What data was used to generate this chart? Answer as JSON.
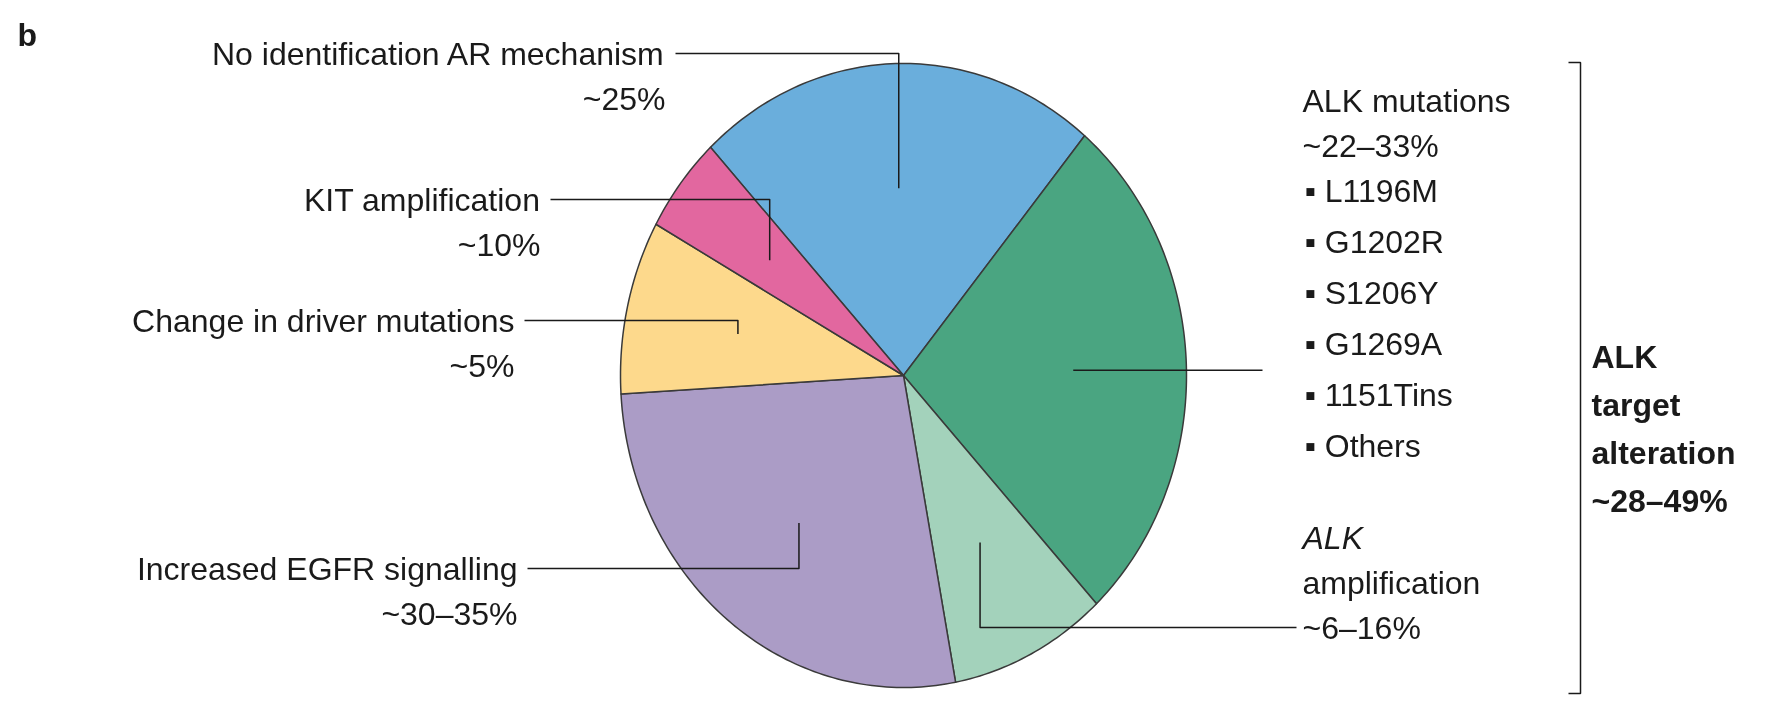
{
  "chart_data": {
    "type": "pie",
    "categories": [
      "No identification AR mechanism",
      "ALK mutations",
      "ALK amplification",
      "Increased EGFR signalling",
      "Change in driver mutations",
      "KIT amplification"
    ],
    "values": [
      23,
      27,
      9,
      27,
      9,
      5
    ],
    "colors": [
      "#6aaedc",
      "#4aa581",
      "#a3d2bb",
      "#ab9cc6",
      "#fdd98c",
      "#e2679f"
    ],
    "annotations": [
      "b",
      "▪ L1196M",
      "▪ G1202R",
      "▪ S1206Y",
      "▪ G1269A",
      "▪ 1151Tins",
      "▪ Others",
      "ALK target alteration ~28–49%",
      "~25%",
      "~22–33%",
      "~6–16%",
      "~30–35%",
      "~5%",
      "~10%"
    ]
  }
}
